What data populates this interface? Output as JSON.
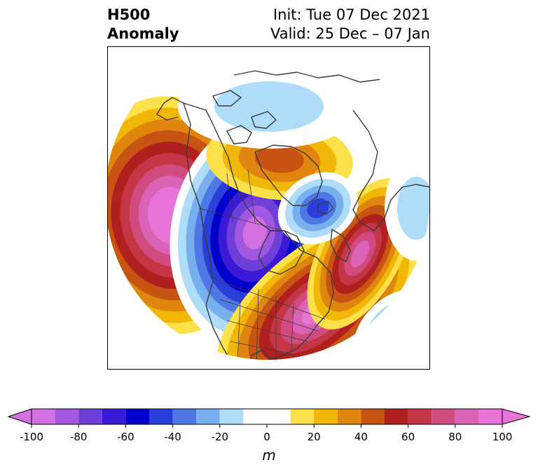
{
  "header": {
    "title_line1": "H500",
    "title_line2": "Anomaly",
    "init": "Init: Tue 07 Dec 2021",
    "valid": "Valid: 25 Dec – 07 Jan"
  },
  "colorbar": {
    "unit": "m",
    "levels": [
      -100,
      -90,
      -80,
      -70,
      -60,
      -50,
      -40,
      -30,
      -20,
      -10,
      10,
      20,
      30,
      40,
      50,
      60,
      70,
      80,
      90,
      100
    ],
    "bins": [
      {
        "from": -100,
        "to": -90,
        "color": "#d46fe2"
      },
      {
        "from": -90,
        "to": -80,
        "color": "#a257e0"
      },
      {
        "from": -80,
        "to": -70,
        "color": "#6f3fd9"
      },
      {
        "from": -70,
        "to": -60,
        "color": "#3a1ad6"
      },
      {
        "from": -60,
        "to": -50,
        "color": "#0000cc"
      },
      {
        "from": -50,
        "to": -40,
        "color": "#2a3fd9"
      },
      {
        "from": -40,
        "to": -30,
        "color": "#4f78e6"
      },
      {
        "from": -30,
        "to": -20,
        "color": "#78b0ef"
      },
      {
        "from": -20,
        "to": -10,
        "color": "#aedcf9"
      },
      {
        "from": -10,
        "to": 10,
        "color": "#ffffff"
      },
      {
        "from": 10,
        "to": 20,
        "color": "#fde14a"
      },
      {
        "from": 20,
        "to": 30,
        "color": "#f1b706"
      },
      {
        "from": 30,
        "to": 40,
        "color": "#e0850e"
      },
      {
        "from": 40,
        "to": 50,
        "color": "#c75412"
      },
      {
        "from": 50,
        "to": 60,
        "color": "#b0201e"
      },
      {
        "from": 60,
        "to": 70,
        "color": "#c43646"
      },
      {
        "from": 70,
        "to": 80,
        "color": "#d04c80"
      },
      {
        "from": 80,
        "to": 90,
        "color": "#da63b6"
      },
      {
        "from": 90,
        "to": 100,
        "color": "#e874d8"
      }
    ],
    "extend_low_color": "#d46fe2",
    "extend_high_color": "#e874d8",
    "tick_values": [
      -100,
      -80,
      -60,
      -40,
      -20,
      0,
      20,
      40,
      60,
      80,
      100
    ],
    "tick_labels": [
      "-100",
      "-80",
      "-60",
      "-40",
      "-20",
      "0",
      "20",
      "40",
      "60",
      "80",
      "100"
    ]
  },
  "map": {
    "projection": "north-polar-stereographic",
    "anomaly_centers": [
      {
        "region": "Gulf of Alaska / NE Pacific",
        "sign": "positive",
        "peak_m": 100
      },
      {
        "region": "Western Canada / Pacific Northwest",
        "sign": "negative",
        "peak_m": -100
      },
      {
        "region": "Eastern United States / Western Atlantic",
        "sign": "positive",
        "peak_m": 90
      },
      {
        "region": "Central North Atlantic / Europe",
        "sign": "positive",
        "peak_m": 80
      },
      {
        "region": "Greenland / Canadian Arctic",
        "sign": "positive",
        "peak_m": 40
      },
      {
        "region": "Iceland / Norwegian Sea",
        "sign": "negative",
        "peak_m": -50
      },
      {
        "region": "Arctic Ocean / Siberia",
        "sign": "negative",
        "peak_m": -20
      }
    ]
  }
}
